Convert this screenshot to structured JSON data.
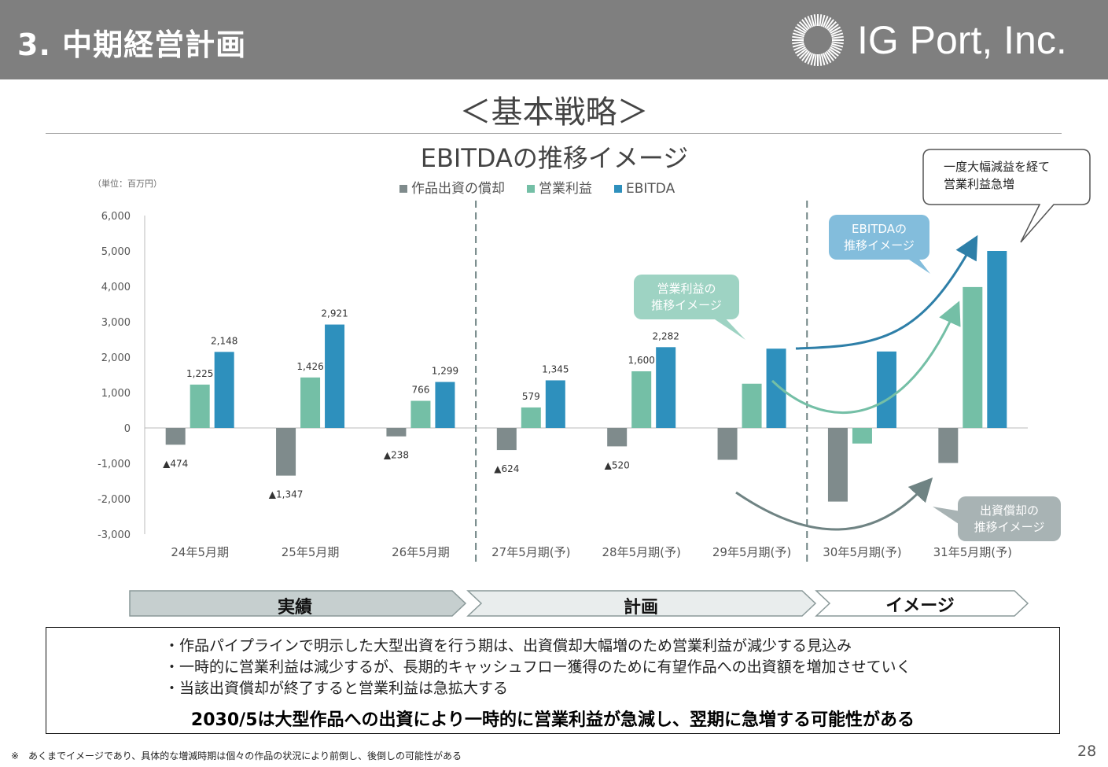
{
  "header": {
    "title": "3. 中期経営計画",
    "logo_text": "IG Port, Inc."
  },
  "heading": "＜基本戦略＞",
  "chart_data": {
    "type": "bar",
    "title": "EBITDAの推移イメージ",
    "unit_label": "（単位：百万円）",
    "categories": [
      "24年5月期",
      "25年5月期",
      "26年5月期",
      "27年5月期(予)",
      "28年5月期(予)",
      "29年5月期(予)",
      "30年5月期(予)",
      "31年5月期(予)"
    ],
    "series": [
      {
        "name": "作品出資の償却",
        "color": "#7f8b8c",
        "values": [
          -474,
          -1347,
          -238,
          -624,
          -520,
          -900,
          -2080,
          -990
        ]
      },
      {
        "name": "営業利益",
        "color": "#74bfa6",
        "values": [
          1225,
          1426,
          766,
          579,
          1600,
          1250,
          -440,
          3980
        ]
      },
      {
        "name": "EBITDA",
        "color": "#2e90bd",
        "values": [
          2148,
          2921,
          1299,
          1345,
          2282,
          2240,
          2160,
          5000
        ]
      }
    ],
    "data_labels": [
      [
        "▲474",
        "▲1,347",
        "▲238",
        "▲624",
        "▲520",
        "",
        "",
        ""
      ],
      [
        "1,225",
        "1,426",
        "766",
        "579",
        "1,600",
        "",
        "",
        ""
      ],
      [
        "2,148",
        "2,921",
        "1,299",
        "1,345",
        "2,282",
        "",
        "",
        ""
      ]
    ],
    "y_ticks": [
      "6,000",
      "5,000",
      "4,000",
      "3,000",
      "2,000",
      "1,000",
      "0",
      "-1,000",
      "-2,000",
      "-3,000"
    ],
    "ylim": [
      -3000,
      6000
    ],
    "grid": false,
    "legend_position": "top-center",
    "annotations": {
      "profit_bubble": [
        "営業利益の",
        "推移イメージ"
      ],
      "ebitda_bubble": [
        "EBITDAの",
        "推移イメージ"
      ],
      "amort_bubble": [
        "出資償却の",
        "推移イメージ"
      ],
      "callout": [
        "一度大幅減益を経て",
        "営業利益急増"
      ]
    }
  },
  "phases": [
    "実績",
    "計画",
    "イメージ"
  ],
  "notes": {
    "bullets": [
      "・作品パイプラインで明示した大型出資を行う期は、出資償却大幅増のため営業利益が減少する見込み",
      "・一時的に営業利益は減少するが、長期的キャッシュフロー獲得のために有望作品への出資額を増加させていく",
      "・当該出資償却が終了すると営業利益は急拡大する"
    ],
    "conclusion": "2030/5は大型作品への出資により一時的に営業利益が急減し、翌期に急増する可能性がある"
  },
  "footnote": "※　あくまでイメージであり、具体的な増減時期は個々の作品の状況により前倒し、後倒しの可能性がある",
  "page_number": "28"
}
